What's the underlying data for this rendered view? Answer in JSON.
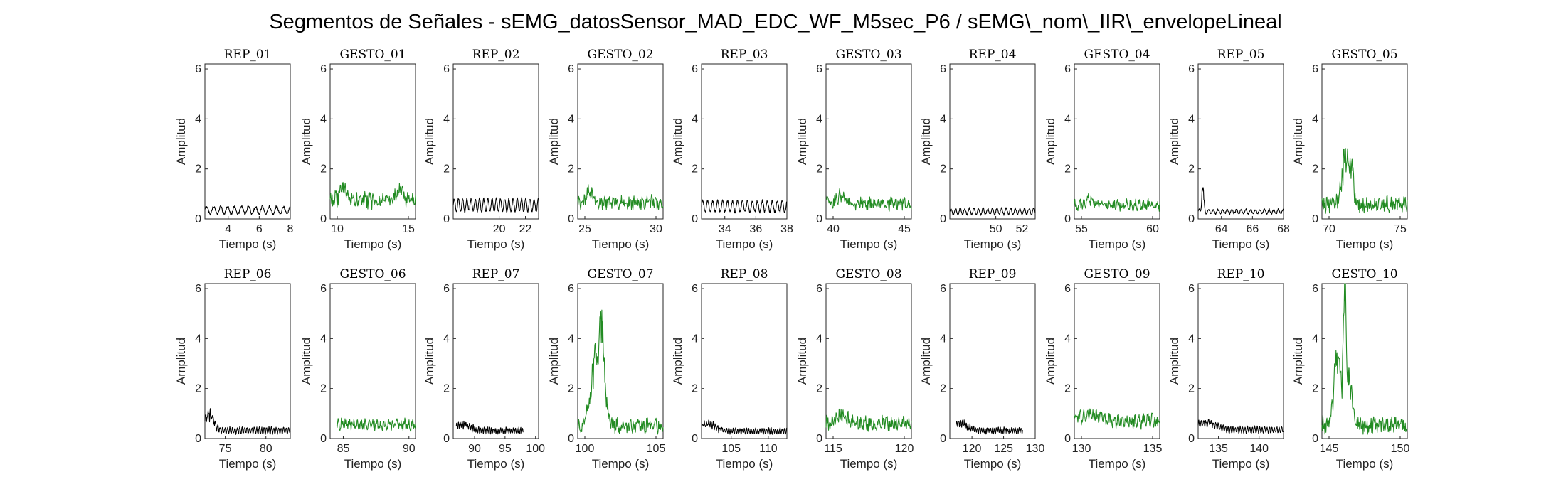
{
  "window": {
    "title": "Segmentos de Señales - sEMG_datosSensor_MAD_EDC_WF_M5sec_P6 / sEMG\\_nom\\_IIR\\_envelopeLineal"
  },
  "colors": {
    "rep": "#000000",
    "gesto": "#228B22",
    "axes": "#262626"
  },
  "chart_data": [
    {
      "type": "line",
      "title": "REP_01",
      "xlabel": "Tiempo (s)",
      "ylabel": "Amplitud",
      "xlim": [
        2.5,
        8
      ],
      "ylim": [
        0,
        6.2
      ],
      "xticks": [
        4,
        6,
        8
      ],
      "yticks": [
        0,
        2,
        4,
        6
      ],
      "series": [
        {
          "kind": "rep",
          "x_range": [
            2.5,
            8
          ],
          "baseline": 0.35,
          "amp": 0.15,
          "period": 0.45,
          "noise": 0.05,
          "peaks": []
        }
      ]
    },
    {
      "type": "line",
      "title": "GESTO_01",
      "xlabel": "Tiempo (s)",
      "ylabel": "Amplitud",
      "xlim": [
        9.5,
        15.5
      ],
      "ylim": [
        0,
        6.2
      ],
      "xticks": [
        10,
        15
      ],
      "yticks": [
        0,
        2,
        4,
        6
      ],
      "series": [
        {
          "kind": "gesto",
          "x_range": [
            9.5,
            15.5
          ],
          "baseline": 0.75,
          "amp": 0.1,
          "period": 0.3,
          "noise": 0.28,
          "peaks": [
            [
              10.4,
              0.55,
              0.2
            ],
            [
              14.4,
              0.5,
              0.2
            ]
          ]
        }
      ]
    },
    {
      "type": "line",
      "title": "REP_02",
      "xlabel": "Tiempo (s)",
      "ylabel": "Amplitud",
      "xlim": [
        16.5,
        23
      ],
      "ylim": [
        0,
        6.2
      ],
      "xticks": [
        20,
        22
      ],
      "yticks": [
        0,
        2,
        4,
        6
      ],
      "series": [
        {
          "kind": "rep",
          "x_range": [
            16.5,
            23
          ],
          "baseline": 0.55,
          "amp": 0.25,
          "period": 0.32,
          "noise": 0.05,
          "peaks": []
        }
      ]
    },
    {
      "type": "line",
      "title": "GESTO_02",
      "xlabel": "Tiempo (s)",
      "ylabel": "Amplitud",
      "xlim": [
        24.5,
        30.5
      ],
      "ylim": [
        0,
        6.2
      ],
      "xticks": [
        25,
        30
      ],
      "yticks": [
        0,
        2,
        4,
        6
      ],
      "series": [
        {
          "kind": "gesto",
          "x_range": [
            24.5,
            30.5
          ],
          "baseline": 0.65,
          "amp": 0.1,
          "period": 0.3,
          "noise": 0.25,
          "peaks": [
            [
              25.3,
              0.45,
              0.2
            ]
          ]
        }
      ]
    },
    {
      "type": "line",
      "title": "REP_03",
      "xlabel": "Tiempo (s)",
      "ylabel": "Amplitud",
      "xlim": [
        32.5,
        38
      ],
      "ylim": [
        0,
        6.2
      ],
      "xticks": [
        34,
        36,
        38
      ],
      "yticks": [
        0,
        2,
        4,
        6
      ],
      "series": [
        {
          "kind": "rep",
          "x_range": [
            32.5,
            38
          ],
          "baseline": 0.5,
          "amp": 0.22,
          "period": 0.32,
          "noise": 0.05,
          "peaks": []
        }
      ]
    },
    {
      "type": "line",
      "title": "GESTO_03",
      "xlabel": "Tiempo (s)",
      "ylabel": "Amplitud",
      "xlim": [
        39.5,
        45.5
      ],
      "ylim": [
        0,
        6.2
      ],
      "xticks": [
        40,
        45
      ],
      "yticks": [
        0,
        2,
        4,
        6
      ],
      "series": [
        {
          "kind": "gesto",
          "x_range": [
            39.5,
            45.5
          ],
          "baseline": 0.6,
          "amp": 0.1,
          "period": 0.3,
          "noise": 0.22,
          "peaks": [
            [
              40.5,
              0.35,
              0.3
            ]
          ]
        }
      ]
    },
    {
      "type": "line",
      "title": "REP_04",
      "xlabel": "Tiempo (s)",
      "ylabel": "Amplitud",
      "xlim": [
        46.5,
        53
      ],
      "ylim": [
        0,
        6.2
      ],
      "xticks": [
        50,
        52
      ],
      "yticks": [
        0,
        2,
        4,
        6
      ],
      "series": [
        {
          "kind": "rep",
          "x_range": [
            46.5,
            53
          ],
          "baseline": 0.3,
          "amp": 0.12,
          "period": 0.35,
          "noise": 0.04,
          "peaks": []
        }
      ]
    },
    {
      "type": "line",
      "title": "GESTO_04",
      "xlabel": "Tiempo (s)",
      "ylabel": "Amplitud",
      "xlim": [
        54.5,
        60.5
      ],
      "ylim": [
        0,
        6.2
      ],
      "xticks": [
        55,
        60
      ],
      "yticks": [
        0,
        2,
        4,
        6
      ],
      "series": [
        {
          "kind": "gesto",
          "x_range": [
            54.5,
            60.5
          ],
          "baseline": 0.55,
          "amp": 0.1,
          "period": 0.3,
          "noise": 0.18,
          "peaks": [
            [
              55.6,
              0.25,
              0.3
            ]
          ]
        }
      ]
    },
    {
      "type": "line",
      "title": "REP_05",
      "xlabel": "Tiempo (s)",
      "ylabel": "Amplitud",
      "xlim": [
        62.5,
        68
      ],
      "ylim": [
        0,
        6.2
      ],
      "xticks": [
        64,
        66,
        68
      ],
      "yticks": [
        0,
        2,
        4,
        6
      ],
      "series": [
        {
          "kind": "rep",
          "x_range": [
            62.5,
            68
          ],
          "baseline": 0.3,
          "amp": 0.08,
          "period": 0.3,
          "noise": 0.04,
          "peaks": [
            [
              62.8,
              1.1,
              0.06
            ]
          ]
        }
      ]
    },
    {
      "type": "line",
      "title": "GESTO_05",
      "xlabel": "Tiempo (s)",
      "ylabel": "Amplitud",
      "xlim": [
        69.5,
        75.5
      ],
      "ylim": [
        0,
        6.2
      ],
      "xticks": [
        70,
        75
      ],
      "yticks": [
        0,
        2,
        4,
        6
      ],
      "series": [
        {
          "kind": "gesto",
          "x_range": [
            69.5,
            75.5
          ],
          "baseline": 0.6,
          "amp": 0.1,
          "period": 0.3,
          "noise": 0.3,
          "peaks": [
            [
              71.2,
              2.1,
              0.25
            ],
            [
              71.6,
              1.0,
              0.12
            ]
          ]
        }
      ]
    },
    {
      "type": "line",
      "title": "REP_06",
      "xlabel": "Tiempo (s)",
      "ylabel": "Amplitud",
      "xlim": [
        72.5,
        83
      ],
      "ylim": [
        0,
        6.2
      ],
      "xticks": [
        75,
        80
      ],
      "yticks": [
        0,
        2,
        4,
        6
      ],
      "series": [
        {
          "kind": "rep",
          "x_range": [
            72.5,
            83
          ],
          "baseline": 0.32,
          "amp": 0.12,
          "period": 0.3,
          "noise": 0.05,
          "peaks": [
            [
              73.0,
              0.6,
              0.6
            ]
          ]
        }
      ]
    },
    {
      "type": "line",
      "title": "GESTO_06",
      "xlabel": "Tiempo (s)",
      "ylabel": "Amplitud",
      "xlim": [
        84,
        90.5
      ],
      "ylim": [
        0,
        6.2
      ],
      "xticks": [
        85,
        90
      ],
      "yticks": [
        0,
        2,
        4,
        6
      ],
      "series": [
        {
          "kind": "gesto",
          "x_range": [
            84.5,
            90.5
          ],
          "baseline": 0.55,
          "amp": 0.1,
          "period": 0.3,
          "noise": 0.18,
          "peaks": []
        }
      ]
    },
    {
      "type": "line",
      "title": "REP_07",
      "xlabel": "Tiempo (s)",
      "ylabel": "Amplitud",
      "xlim": [
        86.5,
        100.5
      ],
      "ylim": [
        0,
        6.2
      ],
      "xticks": [
        90,
        95,
        100
      ],
      "yticks": [
        0,
        2,
        4,
        6
      ],
      "series": [
        {
          "kind": "rep",
          "x_range": [
            87,
            98
          ],
          "baseline": 0.32,
          "amp": 0.1,
          "period": 0.3,
          "noise": 0.05,
          "peaks": [
            [
              88,
              0.25,
              1.2
            ]
          ]
        }
      ]
    },
    {
      "type": "line",
      "title": "GESTO_07",
      "xlabel": "Tiempo (s)",
      "ylabel": "Amplitud",
      "xlim": [
        99.5,
        105.5
      ],
      "ylim": [
        0,
        6.2
      ],
      "xticks": [
        100,
        105
      ],
      "yticks": [
        0,
        2,
        4,
        6
      ],
      "series": [
        {
          "kind": "gesto",
          "x_range": [
            99.5,
            105.5
          ],
          "baseline": 0.5,
          "amp": 0.1,
          "period": 0.3,
          "noise": 0.25,
          "peaks": [
            [
              100.9,
              2.9,
              0.4
            ],
            [
              101.2,
              1.8,
              0.12
            ]
          ]
        }
      ]
    },
    {
      "type": "line",
      "title": "REP_08",
      "xlabel": "Tiempo (s)",
      "ylabel": "Amplitud",
      "xlim": [
        101,
        112.5
      ],
      "ylim": [
        0,
        6.2
      ],
      "xticks": [
        105,
        110
      ],
      "yticks": [
        0,
        2,
        4,
        6
      ],
      "series": [
        {
          "kind": "rep",
          "x_range": [
            101,
            112.5
          ],
          "baseline": 0.3,
          "amp": 0.1,
          "period": 0.3,
          "noise": 0.05,
          "peaks": [
            [
              101.8,
              0.3,
              1.0
            ]
          ]
        }
      ]
    },
    {
      "type": "line",
      "title": "GESTO_08",
      "xlabel": "Tiempo (s)",
      "ylabel": "Amplitud",
      "xlim": [
        114.5,
        120.5
      ],
      "ylim": [
        0,
        6.2
      ],
      "xticks": [
        115,
        120
      ],
      "yticks": [
        0,
        2,
        4,
        6
      ],
      "series": [
        {
          "kind": "gesto",
          "x_range": [
            114.5,
            120.5
          ],
          "baseline": 0.6,
          "amp": 0.1,
          "period": 0.3,
          "noise": 0.25,
          "peaks": [
            [
              115.6,
              0.3,
              0.4
            ]
          ]
        }
      ]
    },
    {
      "type": "line",
      "title": "REP_09",
      "xlabel": "Tiempo (s)",
      "ylabel": "Amplitud",
      "xlim": [
        116.5,
        130
      ],
      "ylim": [
        0,
        6.2
      ],
      "xticks": [
        120,
        125,
        130
      ],
      "yticks": [
        0,
        2,
        4,
        6
      ],
      "series": [
        {
          "kind": "rep",
          "x_range": [
            117.5,
            128
          ],
          "baseline": 0.32,
          "amp": 0.1,
          "period": 0.3,
          "noise": 0.05,
          "peaks": [
            [
              118,
              0.3,
              1.2
            ]
          ]
        }
      ]
    },
    {
      "type": "line",
      "title": "GESTO_09",
      "xlabel": "Tiempo (s)",
      "ylabel": "Amplitud",
      "xlim": [
        129.5,
        135.5
      ],
      "ylim": [
        0,
        6.2
      ],
      "xticks": [
        130,
        135
      ],
      "yticks": [
        0,
        2,
        4,
        6
      ],
      "series": [
        {
          "kind": "gesto",
          "x_range": [
            129.5,
            135.5
          ],
          "baseline": 0.7,
          "amp": 0.1,
          "period": 0.3,
          "noise": 0.25,
          "peaks": [
            [
              130.6,
              0.3,
              0.5
            ]
          ]
        }
      ]
    },
    {
      "type": "line",
      "title": "REP_10",
      "xlabel": "Tiempo (s)",
      "ylabel": "Amplitud",
      "xlim": [
        132.5,
        143
      ],
      "ylim": [
        0,
        6.2
      ],
      "xticks": [
        135,
        140
      ],
      "yticks": [
        0,
        2,
        4,
        6
      ],
      "series": [
        {
          "kind": "rep",
          "x_range": [
            132.5,
            143
          ],
          "baseline": 0.35,
          "amp": 0.12,
          "period": 0.3,
          "noise": 0.05,
          "peaks": [
            [
              133.5,
              0.3,
              1.2
            ]
          ]
        }
      ]
    },
    {
      "type": "line",
      "title": "GESTO_10",
      "xlabel": "Tiempo (s)",
      "ylabel": "Amplitud",
      "xlim": [
        144.5,
        150.5
      ],
      "ylim": [
        0,
        6.2
      ],
      "xticks": [
        145,
        150
      ],
      "yticks": [
        0,
        2,
        4,
        6
      ],
      "series": [
        {
          "kind": "gesto",
          "x_range": [
            144.5,
            150.5
          ],
          "baseline": 0.55,
          "amp": 0.1,
          "period": 0.3,
          "noise": 0.3,
          "peaks": [
            [
              145.6,
              2.7,
              0.25
            ],
            [
              146.1,
              5.5,
              0.08
            ],
            [
              146.4,
              2.2,
              0.2
            ]
          ]
        }
      ]
    }
  ]
}
